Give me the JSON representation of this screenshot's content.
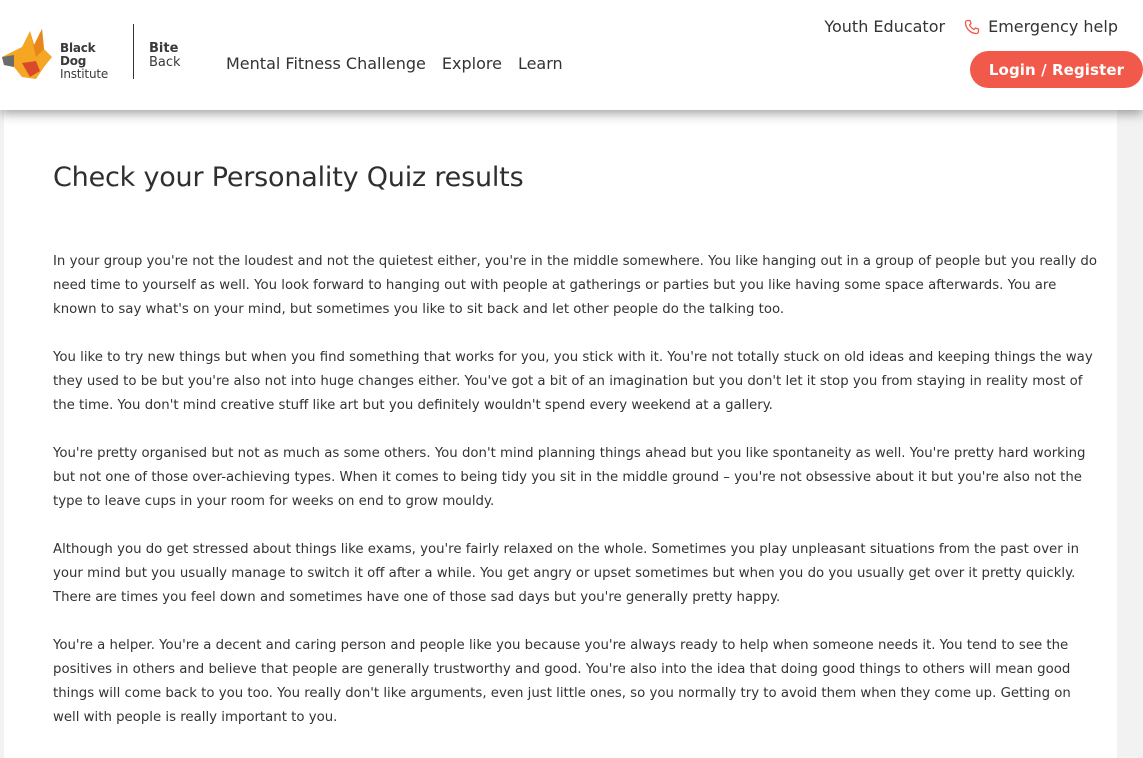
{
  "brand": {
    "bdi_line1": "Black Dog",
    "bdi_line2": "Institute",
    "bb_line1": "Bite",
    "bb_line2": "Back",
    "accent_color": "#f15a4a"
  },
  "nav": {
    "items": [
      {
        "label": "Mental Fitness Challenge"
      },
      {
        "label": "Explore"
      },
      {
        "label": "Learn"
      }
    ]
  },
  "utility": {
    "youth_educator": "Youth Educator",
    "emergency_help": "Emergency help",
    "emergency_icon": "phone-icon"
  },
  "login": {
    "label": "Login / Register"
  },
  "main": {
    "title": "Check your Personality Quiz results",
    "paragraphs": [
      "In your group you're not the loudest and not the quietest either, you're in the middle somewhere. You like hanging out in a group of people but you really do need time to yourself as well. You look forward to hanging out with people at gatherings or parties but you like having some space afterwards. You are known to say what's on your mind, but sometimes you like to sit back and let other people do the talking too.",
      "You like to try new things but when you find something that works for you, you stick with it. You're not totally stuck on old ideas and keeping things the way they used to be but you're also not into huge changes either. You've got a bit of an imagination but you don't let it stop you from staying in reality most of the time. You don't mind creative stuff like art but you definitely wouldn't spend every weekend at a gallery.",
      "You're pretty organised but not as much as some others. You don't mind planning things ahead but you like spontaneity as well. You're pretty hard working but not one of those over-achieving types. When it comes to being tidy you sit in the middle ground – you're not obsessive about it but you're also not the type to leave cups in your room for weeks on end to grow mouldy.",
      "Although you do get stressed about things like exams, you're fairly relaxed on the whole. Sometimes you play unpleasant situations from the past over in your mind but you usually manage to switch it off after a while. You get angry or upset sometimes but when you do you usually get over it pretty quickly. There are times you feel down and sometimes have one of those sad days but you're generally pretty happy.",
      "You're a helper. You're a decent and caring person and people like you because you're always ready to help when someone needs it. You tend to see the positives in others and believe that people are generally trustworthy and good. You're also into the idea that doing good things to others will mean good things will come back to you too. You really don't like arguments, even just little ones, so you normally try to avoid them when they come up. Getting on well with people is really important to you."
    ]
  }
}
